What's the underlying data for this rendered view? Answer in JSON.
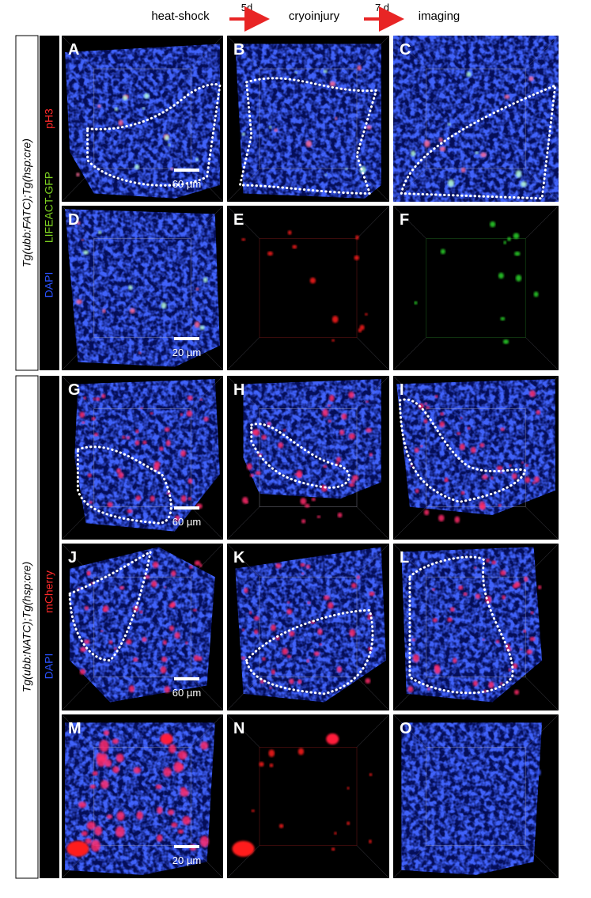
{
  "header": {
    "step1": "heat-shock",
    "interval1": "5d",
    "step2": "cryoinjury",
    "interval2": "7 d",
    "step3": "imaging"
  },
  "groups": [
    {
      "label": "Tg(ubb:FATC);Tg(hsp:cre)",
      "channels": [
        {
          "name": "DAPI",
          "color": "#2a52ff"
        },
        {
          "name": "LIFEACT-GFP",
          "color": "#7ed321"
        },
        {
          "name": "pH3",
          "color": "#ff2a2a"
        }
      ],
      "panels": [
        {
          "letter": "A",
          "scale_bar": "60 µm"
        },
        {
          "letter": "B"
        },
        {
          "letter": "C"
        },
        {
          "letter": "D",
          "scale_bar": "20 µm"
        },
        {
          "letter": "E"
        },
        {
          "letter": "F"
        }
      ]
    },
    {
      "label": "Tg(ubb:NATC);Tg(hsp:cre)",
      "channels": [
        {
          "name": "DAPI",
          "color": "#2a52ff"
        },
        {
          "name": "mCherry",
          "color": "#ff2a2a"
        }
      ],
      "panels": [
        {
          "letter": "G",
          "scale_bar": "60 µm"
        },
        {
          "letter": "H"
        },
        {
          "letter": "I"
        },
        {
          "letter": "J",
          "scale_bar": "60 µm"
        },
        {
          "letter": "K"
        },
        {
          "letter": "L"
        },
        {
          "letter": "M",
          "scale_bar": "20 µm"
        },
        {
          "letter": "N"
        },
        {
          "letter": "O"
        }
      ]
    }
  ]
}
